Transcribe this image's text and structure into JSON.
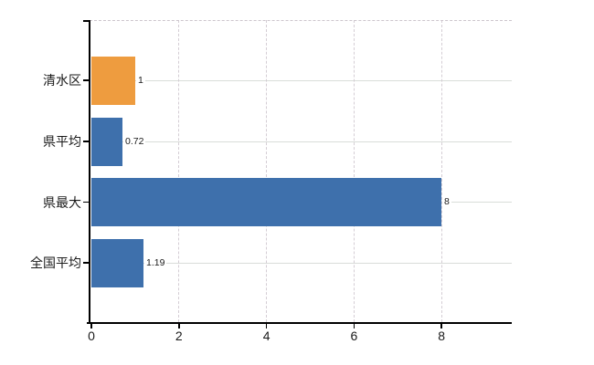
{
  "chart_data": {
    "type": "bar",
    "orientation": "horizontal",
    "title": "",
    "categories": [
      "清水区",
      "県平均",
      "県最大",
      "全国平均"
    ],
    "values": [
      1,
      0.72,
      8,
      1.19
    ],
    "value_labels": [
      "1",
      "0.72",
      "8",
      "1.19"
    ],
    "series": [
      {
        "name": "",
        "values": [
          1,
          0.72,
          8,
          1.19
        ],
        "bar_colors": [
          "#ee9c3f",
          "#3e70ac",
          "#3e70ac",
          "#3e70ac"
        ]
      }
    ],
    "xlabel": "",
    "ylabel": "",
    "x_ticks": [
      0,
      2,
      4,
      6,
      8
    ],
    "x_tick_labels": [
      "0",
      "2",
      "4",
      "6",
      "8"
    ],
    "xlim": [
      0,
      9.6
    ],
    "grid": {
      "horizontal": "solid",
      "vertical": "dashed",
      "top_border": "dashed"
    },
    "legend": "none"
  },
  "colors": {
    "background": "#ffffff",
    "bar_orange": "#ee9c3f",
    "bar_blue": "#3e70ac",
    "axis": "#000000",
    "grid_horizontal": "#d9ddd9",
    "grid_vertical": "#d4cdd4",
    "text": "#1a1a1a"
  }
}
